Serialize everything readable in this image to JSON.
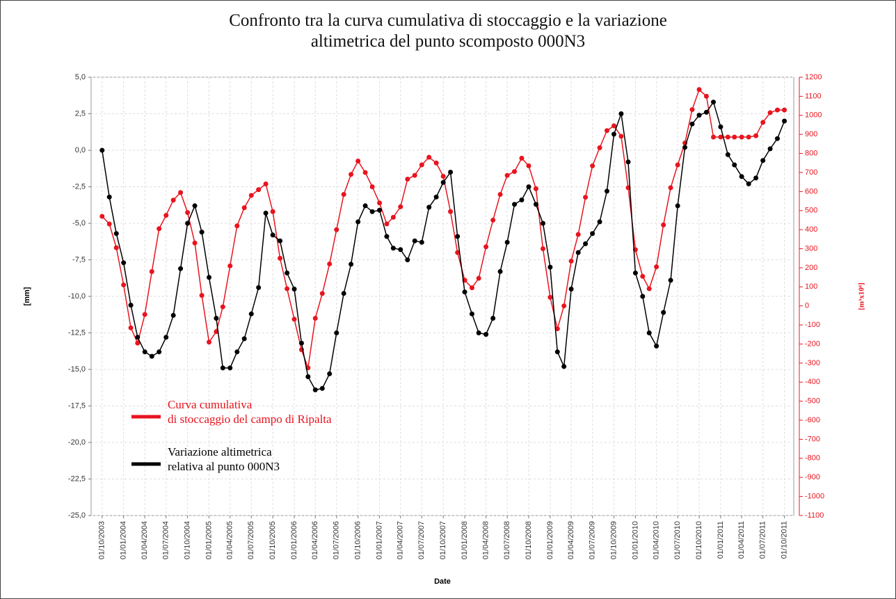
{
  "chart_data": {
    "type": "line",
    "title": "Confronto tra la curva cumulativa di stoccaggio e la variazione\naltimetrica del punto scomposto 000N3",
    "x_label": "Date",
    "y_label": "[mm]",
    "y2_label": "[m³x10⁶]",
    "legend": "lower left",
    "grid": true,
    "xlim": [
      "15/08/2003",
      "10/11/2011"
    ],
    "xticks": [
      "01/10/2003",
      "01/01/2004",
      "01/04/2004",
      "01/07/2004",
      "01/10/2004",
      "01/01/2005",
      "01/04/2005",
      "01/07/2005",
      "01/10/2005",
      "01/01/2006",
      "01/04/2006",
      "01/07/2006",
      "01/10/2006",
      "01/01/2007",
      "01/04/2007",
      "01/07/2007",
      "01/10/2007",
      "01/01/2008",
      "01/04/2008",
      "01/07/2008",
      "01/10/2008",
      "01/01/2009",
      "01/04/2009",
      "01/07/2009",
      "01/10/2009",
      "01/01/2010",
      "01/04/2010",
      "01/07/2010",
      "01/10/2010",
      "01/01/2011",
      "01/04/2011",
      "01/07/2011",
      "01/10/2011"
    ],
    "ylim": [
      -25,
      5
    ],
    "yticks": [
      {
        "value": 5,
        "label": "5,0"
      },
      {
        "value": 2.5,
        "label": "2,5"
      },
      {
        "value": 0,
        "label": "0,0"
      },
      {
        "value": -2.5,
        "label": "-2,5"
      },
      {
        "value": -5,
        "label": "-5,0"
      },
      {
        "value": -7.5,
        "label": "-7,5"
      },
      {
        "value": -10,
        "label": "-10,0"
      },
      {
        "value": -12.5,
        "label": "-12,5"
      },
      {
        "value": -15,
        "label": "-15,0"
      },
      {
        "value": -17.5,
        "label": "-17,5"
      },
      {
        "value": -20,
        "label": "-20,0"
      },
      {
        "value": -22.5,
        "label": "-22,5"
      },
      {
        "value": -25,
        "label": "-25,0"
      }
    ],
    "y2lim": [
      -1100,
      1200
    ],
    "y2ticks": [
      1200,
      1100,
      1000,
      900,
      800,
      700,
      600,
      500,
      400,
      300,
      200,
      100,
      0,
      -100,
      -200,
      -300,
      -400,
      -500,
      -600,
      -700,
      -800,
      -900,
      -1000,
      -1100
    ],
    "x": [
      "01/10/2003",
      "01/11/2003",
      "01/12/2003",
      "01/01/2004",
      "01/02/2004",
      "01/03/2004",
      "01/04/2004",
      "01/05/2004",
      "01/06/2004",
      "01/07/2004",
      "01/08/2004",
      "01/09/2004",
      "01/10/2004",
      "01/11/2004",
      "01/12/2004",
      "01/01/2005",
      "01/02/2005",
      "01/03/2005",
      "01/04/2005",
      "01/05/2005",
      "01/06/2005",
      "01/07/2005",
      "01/08/2005",
      "01/09/2005",
      "01/10/2005",
      "01/11/2005",
      "01/12/2005",
      "01/01/2006",
      "01/02/2006",
      "01/03/2006",
      "01/04/2006",
      "01/05/2006",
      "01/06/2006",
      "01/07/2006",
      "01/08/2006",
      "01/09/2006",
      "01/10/2006",
      "01/11/2006",
      "01/12/2006",
      "01/01/2007",
      "01/02/2007",
      "01/03/2007",
      "01/04/2007",
      "01/05/2007",
      "01/06/2007",
      "01/07/2007",
      "01/08/2007",
      "01/09/2007",
      "01/10/2007",
      "01/11/2007",
      "01/12/2007",
      "01/01/2008",
      "01/02/2008",
      "01/03/2008",
      "01/04/2008",
      "01/05/2008",
      "01/06/2008",
      "01/07/2008",
      "01/08/2008",
      "01/09/2008",
      "01/10/2008",
      "01/11/2008",
      "01/12/2008",
      "01/01/2009",
      "01/02/2009",
      "01/03/2009",
      "01/04/2009",
      "01/05/2009",
      "01/06/2009",
      "01/07/2009",
      "01/08/2009",
      "01/09/2009",
      "01/10/2009",
      "01/11/2009",
      "01/12/2009",
      "01/01/2010",
      "01/02/2010",
      "01/03/2010",
      "01/04/2010",
      "01/05/2010",
      "01/06/2010",
      "01/07/2010",
      "01/08/2010",
      "01/09/2010",
      "01/10/2010",
      "01/11/2010",
      "01/12/2010",
      "01/01/2011",
      "01/02/2011",
      "01/03/2011",
      "01/04/2011",
      "01/05/2011",
      "01/06/2011",
      "01/07/2011",
      "01/08/2011",
      "01/09/2011",
      "01/10/2011"
    ],
    "series": [
      {
        "name": "Curva cumulativa\ndi stoccaggio del campo di Ripalta",
        "color": "#e8141e",
        "axis": "y2",
        "values": [
          470,
          430,
          305,
          110,
          -115,
          -195,
          -45,
          180,
          405,
          475,
          555,
          595,
          490,
          330,
          55,
          -190,
          -135,
          -5,
          210,
          420,
          515,
          580,
          610,
          640,
          495,
          250,
          90,
          -70,
          -230,
          -325,
          -65,
          65,
          220,
          400,
          585,
          690,
          760,
          700,
          625,
          540,
          430,
          465,
          520,
          665,
          685,
          740,
          780,
          750,
          680,
          495,
          280,
          135,
          95,
          145,
          310,
          450,
          585,
          685,
          705,
          775,
          735,
          615,
          300,
          45,
          -120,
          0,
          235,
          375,
          570,
          735,
          830,
          920,
          945,
          890,
          620,
          295,
          155,
          90,
          205,
          425,
          620,
          740,
          855,
          1030,
          1135,
          1100,
          886,
          886,
          886,
          886,
          886,
          886,
          893,
          963,
          1014,
          1028,
          1028
        ]
      },
      {
        "name": "Variazione altimetrica\nrelativa al punto 000N3",
        "color": "#000000",
        "values": [
          0.0,
          -3.2,
          -5.7,
          -7.7,
          -10.6,
          -12.8,
          -13.8,
          -14.1,
          -13.8,
          -12.8,
          -11.3,
          -8.1,
          -5.0,
          -3.8,
          -5.6,
          -8.7,
          -11.5,
          -14.9,
          -14.9,
          -13.8,
          -12.9,
          -11.2,
          -9.4,
          -4.3,
          -5.8,
          -6.2,
          -8.4,
          -9.5,
          -13.2,
          -15.5,
          -16.4,
          -16.3,
          -15.3,
          -12.5,
          -9.8,
          -7.8,
          -4.9,
          -3.8,
          -4.2,
          -4.1,
          -5.9,
          -6.7,
          -6.8,
          -7.5,
          -6.2,
          -6.3,
          -3.9,
          -3.2,
          -2.2,
          -1.5,
          -5.9,
          -9.7,
          -11.2,
          -12.5,
          -12.6,
          -11.5,
          -8.3,
          -6.3,
          -3.7,
          -3.4,
          -2.5,
          -3.7,
          -5.0,
          -8.0,
          -13.8,
          -14.8,
          -9.5,
          -7.0,
          -6.4,
          -5.7,
          -4.9,
          -2.8,
          1.1,
          2.5,
          -0.8,
          -8.4,
          -10.0,
          -12.5,
          -13.4,
          -11.1,
          -8.9,
          -3.8,
          0.2,
          1.8,
          2.4,
          2.6,
          3.3,
          1.6,
          -0.3,
          -1.0,
          -1.8,
          -2.3,
          -1.9,
          -0.7,
          0.1,
          0.8,
          2.0
        ]
      }
    ]
  }
}
